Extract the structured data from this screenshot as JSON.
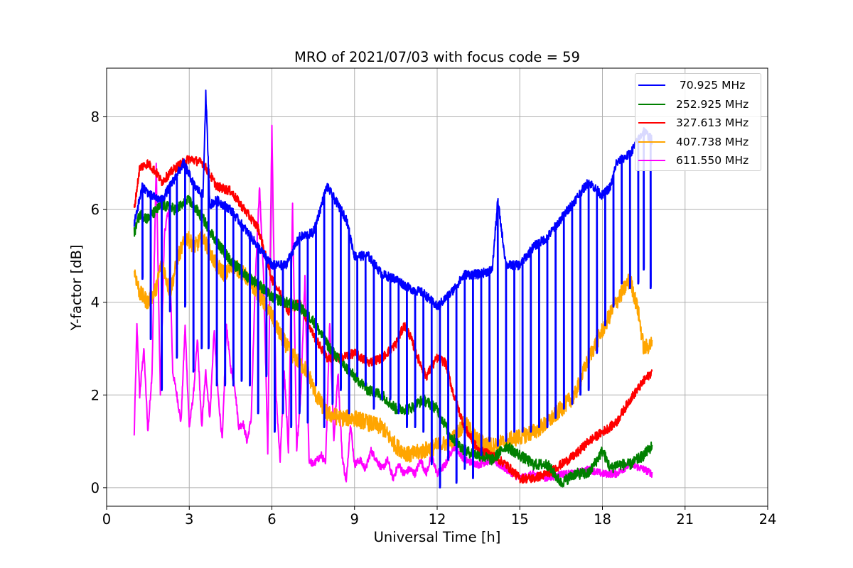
{
  "chart_data": {
    "type": "line",
    "title": "MRO of 2021/07/03 with focus code = 59",
    "xlabel": "Universal Time [h]",
    "ylabel": "Y-factor [dB]",
    "xlim": [
      0,
      24
    ],
    "ylim": [
      -0.4,
      9.05
    ],
    "xticks": [
      0,
      3,
      6,
      9,
      12,
      15,
      18,
      21,
      24
    ],
    "yticks": [
      0,
      2,
      4,
      6,
      8
    ],
    "grid": true,
    "legend_position": "top-right",
    "series": [
      {
        "name": " 70.925 MHz",
        "color": "#0000ff",
        "x": [
          1.0,
          1.3,
          1.6,
          2.0,
          2.4,
          2.8,
          3.2,
          3.5,
          3.6,
          3.75,
          4.0,
          4.5,
          5.0,
          5.5,
          6.0,
          6.5,
          7.0,
          7.5,
          8.0,
          8.3,
          8.7,
          9.0,
          9.5,
          10.0,
          10.5,
          11.0,
          11.5,
          12.0,
          12.5,
          13.0,
          13.5,
          14.0,
          14.2,
          14.5,
          15.0,
          15.5,
          16.0,
          16.5,
          17.0,
          17.5,
          18.0,
          18.3,
          18.5,
          19.0,
          19.5,
          19.8
        ],
        "values": [
          5.7,
          6.5,
          6.3,
          6.2,
          6.6,
          7.0,
          6.5,
          6.3,
          8.5,
          6.1,
          6.2,
          6.0,
          5.6,
          5.2,
          4.8,
          4.8,
          5.4,
          5.5,
          6.5,
          6.2,
          5.8,
          5.0,
          5.0,
          4.6,
          4.5,
          4.3,
          4.2,
          3.9,
          4.2,
          4.6,
          4.6,
          4.7,
          6.2,
          4.8,
          4.8,
          5.2,
          5.4,
          5.8,
          6.2,
          6.6,
          6.3,
          6.5,
          7.0,
          7.2,
          7.7,
          7.5
        ],
        "dips": [
          [
            1.3,
            4.5
          ],
          [
            1.6,
            3.2
          ],
          [
            2.0,
            2.1
          ],
          [
            2.3,
            3.8
          ],
          [
            2.55,
            2.8
          ],
          [
            2.85,
            3.9
          ],
          [
            3.15,
            2.5
          ],
          [
            3.45,
            3.0
          ],
          [
            3.7,
            3.0
          ],
          [
            4.0,
            2.2
          ],
          [
            4.3,
            2.2
          ],
          [
            4.6,
            2.2
          ],
          [
            4.9,
            2.3
          ],
          [
            5.2,
            2.2
          ],
          [
            5.5,
            1.6
          ],
          [
            5.8,
            2.4
          ],
          [
            6.1,
            1.2
          ],
          [
            6.4,
            1.6
          ],
          [
            6.7,
            1.3
          ],
          [
            7.0,
            1.6
          ],
          [
            7.3,
            1.4
          ],
          [
            7.6,
            2.2
          ],
          [
            7.9,
            1.3
          ],
          [
            8.2,
            1.8
          ],
          [
            8.5,
            2.1
          ],
          [
            8.8,
            1.6
          ],
          [
            9.1,
            2.4
          ],
          [
            9.4,
            2.2
          ],
          [
            9.7,
            1.7
          ],
          [
            10.0,
            1.9
          ],
          [
            10.3,
            1.9
          ],
          [
            10.6,
            1.6
          ],
          [
            10.9,
            1.3
          ],
          [
            11.2,
            1.3
          ],
          [
            11.5,
            1.2
          ],
          [
            11.8,
            0.5
          ],
          [
            12.1,
            0.0
          ],
          [
            12.4,
            0.6
          ],
          [
            12.7,
            0.1
          ],
          [
            13.0,
            0.4
          ],
          [
            13.3,
            0.2
          ],
          [
            13.6,
            0.7
          ],
          [
            13.9,
            1.0
          ],
          [
            14.2,
            0.9
          ],
          [
            14.5,
            1.0
          ],
          [
            14.8,
            1.2
          ],
          [
            15.1,
            1.2
          ],
          [
            15.4,
            1.2
          ],
          [
            15.7,
            1.3
          ],
          [
            16.0,
            1.3
          ],
          [
            16.3,
            1.5
          ],
          [
            16.6,
            1.7
          ],
          [
            16.9,
            1.8
          ],
          [
            17.2,
            2.0
          ],
          [
            17.5,
            2.1
          ],
          [
            17.8,
            2.9
          ],
          [
            18.1,
            3.5
          ],
          [
            18.4,
            3.9
          ],
          [
            18.7,
            4.4
          ],
          [
            19.0,
            4.3
          ],
          [
            19.3,
            4.4
          ],
          [
            19.5,
            4.7
          ],
          [
            19.75,
            4.3
          ]
        ]
      },
      {
        "name": "252.925 MHz",
        "color": "#008000",
        "x": [
          1.0,
          1.2,
          1.5,
          2.0,
          2.5,
          3.0,
          3.5,
          4.0,
          4.5,
          5.0,
          5.5,
          6.0,
          6.5,
          7.0,
          7.5,
          8.0,
          8.5,
          9.0,
          9.5,
          10.0,
          10.5,
          11.0,
          11.5,
          12.0,
          12.5,
          13.0,
          13.5,
          14.0,
          14.5,
          15.0,
          15.5,
          16.0,
          16.5,
          17.0,
          17.5,
          18.0,
          18.3,
          18.5,
          19.0,
          19.5,
          19.8
        ],
        "values": [
          5.5,
          5.9,
          5.8,
          6.1,
          6.0,
          6.2,
          5.8,
          5.3,
          4.9,
          4.6,
          4.4,
          4.1,
          4.0,
          3.9,
          3.6,
          3.1,
          2.7,
          2.4,
          2.1,
          2.0,
          1.7,
          1.7,
          1.9,
          1.7,
          1.1,
          0.8,
          0.7,
          0.6,
          0.9,
          0.7,
          0.5,
          0.5,
          0.1,
          0.3,
          0.3,
          0.8,
          0.4,
          0.5,
          0.5,
          0.7,
          0.9
        ],
        "noise": 0.12
      },
      {
        "name": "327.613 MHz",
        "color": "#ff0000",
        "x": [
          1.0,
          1.2,
          1.5,
          1.8,
          2.0,
          2.5,
          3.0,
          3.5,
          4.0,
          4.5,
          5.0,
          5.5,
          6.0,
          6.3,
          6.6,
          7.0,
          7.5,
          8.0,
          8.5,
          9.0,
          9.5,
          10.0,
          10.5,
          10.8,
          11.0,
          11.3,
          11.6,
          12.0,
          12.3,
          12.6,
          13.0,
          13.5,
          14.0,
          14.5,
          15.0,
          15.5,
          16.0,
          16.5,
          17.0,
          17.5,
          18.0,
          18.5,
          19.0,
          19.5,
          19.8
        ],
        "values": [
          6.0,
          6.9,
          7.0,
          6.8,
          6.6,
          6.9,
          7.1,
          7.0,
          6.5,
          6.4,
          6.0,
          5.6,
          4.5,
          4.2,
          3.8,
          4.0,
          3.3,
          2.8,
          2.8,
          2.9,
          2.7,
          2.8,
          3.1,
          3.5,
          3.3,
          2.8,
          2.4,
          2.8,
          2.7,
          2.0,
          1.3,
          0.8,
          0.7,
          0.5,
          0.2,
          0.2,
          0.3,
          0.5,
          0.7,
          1.0,
          1.2,
          1.4,
          1.9,
          2.3,
          2.5
        ],
        "noise": 0.1
      },
      {
        "name": "407.738 MHz",
        "color": "#ffa500",
        "x": [
          1.0,
          1.2,
          1.5,
          1.8,
          2.0,
          2.3,
          2.6,
          2.9,
          3.2,
          3.5,
          3.8,
          4.0,
          4.3,
          4.6,
          5.0,
          5.5,
          6.0,
          6.3,
          6.7,
          7.0,
          7.3,
          7.6,
          8.0,
          8.5,
          9.0,
          9.5,
          10.0,
          10.5,
          11.0,
          11.5,
          12.0,
          12.5,
          13.0,
          13.5,
          14.0,
          14.5,
          15.0,
          15.5,
          16.0,
          16.5,
          17.0,
          17.5,
          18.0,
          18.5,
          19.0,
          19.3,
          19.5,
          19.8
        ],
        "values": [
          4.7,
          4.2,
          4.0,
          4.3,
          4.9,
          4.2,
          5.0,
          5.4,
          5.2,
          5.4,
          5.0,
          4.8,
          4.6,
          4.8,
          4.6,
          4.2,
          3.7,
          3.3,
          2.9,
          2.7,
          2.5,
          2.0,
          1.6,
          1.5,
          1.5,
          1.4,
          1.3,
          0.9,
          0.7,
          0.8,
          0.9,
          1.0,
          1.4,
          1.0,
          0.9,
          1.0,
          1.1,
          1.2,
          1.4,
          1.7,
          2.0,
          2.8,
          3.4,
          4.0,
          4.5,
          3.8,
          3.0,
          3.1
        ],
        "noise": 0.18
      },
      {
        "name": "611.550 MHz",
        "color": "#ff00ff",
        "x": [
          1.0,
          1.1,
          1.2,
          1.35,
          1.5,
          1.65,
          1.8,
          1.95,
          2.1,
          2.25,
          2.4,
          2.55,
          2.7,
          2.85,
          3.0,
          3.15,
          3.3,
          3.45,
          3.6,
          3.75,
          3.9,
          4.05,
          4.2,
          4.35,
          4.5,
          4.65,
          4.8,
          4.95,
          5.1,
          5.25,
          5.4,
          5.55,
          5.7,
          5.85,
          6.0,
          6.15,
          6.3,
          6.45,
          6.6,
          6.75,
          6.9,
          7.05,
          7.2,
          7.35,
          7.5,
          7.65,
          7.8,
          7.95,
          8.1,
          8.25,
          8.4,
          8.55,
          8.7,
          8.85,
          9.0,
          9.2,
          9.4,
          9.6,
          9.8,
          10.0,
          10.2,
          10.4,
          10.6,
          10.8,
          11.0,
          11.2,
          11.4,
          11.6,
          11.8,
          12.0,
          12.3,
          12.6,
          13.0,
          13.5,
          14.0,
          14.5,
          15.0,
          15.5,
          16.0,
          16.5,
          17.0,
          17.5,
          18.0,
          18.5,
          19.0,
          19.5,
          19.8
        ],
        "values": [
          1.1,
          3.5,
          2.0,
          3.0,
          1.2,
          2.5,
          7.0,
          2.0,
          5.5,
          6.0,
          2.5,
          2.0,
          1.4,
          3.5,
          1.3,
          2.0,
          3.2,
          1.3,
          2.5,
          1.5,
          3.4,
          2.0,
          1.0,
          3.5,
          2.6,
          2.2,
          1.3,
          1.4,
          1.0,
          1.5,
          4.5,
          6.5,
          4.5,
          0.8,
          7.8,
          2.0,
          0.6,
          2.5,
          0.8,
          6.1,
          0.8,
          2.0,
          4.5,
          0.6,
          0.5,
          0.6,
          0.7,
          0.5,
          3.6,
          1.0,
          2.5,
          0.7,
          0.1,
          1.4,
          0.5,
          0.6,
          0.4,
          0.8,
          0.6,
          0.4,
          0.6,
          0.2,
          0.5,
          0.3,
          0.4,
          0.3,
          0.6,
          0.3,
          0.7,
          0.3,
          0.5,
          0.9,
          0.6,
          0.5,
          0.6,
          0.4,
          0.2,
          0.3,
          0.2,
          0.3,
          0.3,
          0.4,
          0.3,
          0.3,
          0.5,
          0.4,
          0.3
        ],
        "noise": 0.08
      }
    ]
  },
  "colors": {
    "grid": "#b0b0b0",
    "axes": "#000000",
    "background": "#ffffff"
  }
}
